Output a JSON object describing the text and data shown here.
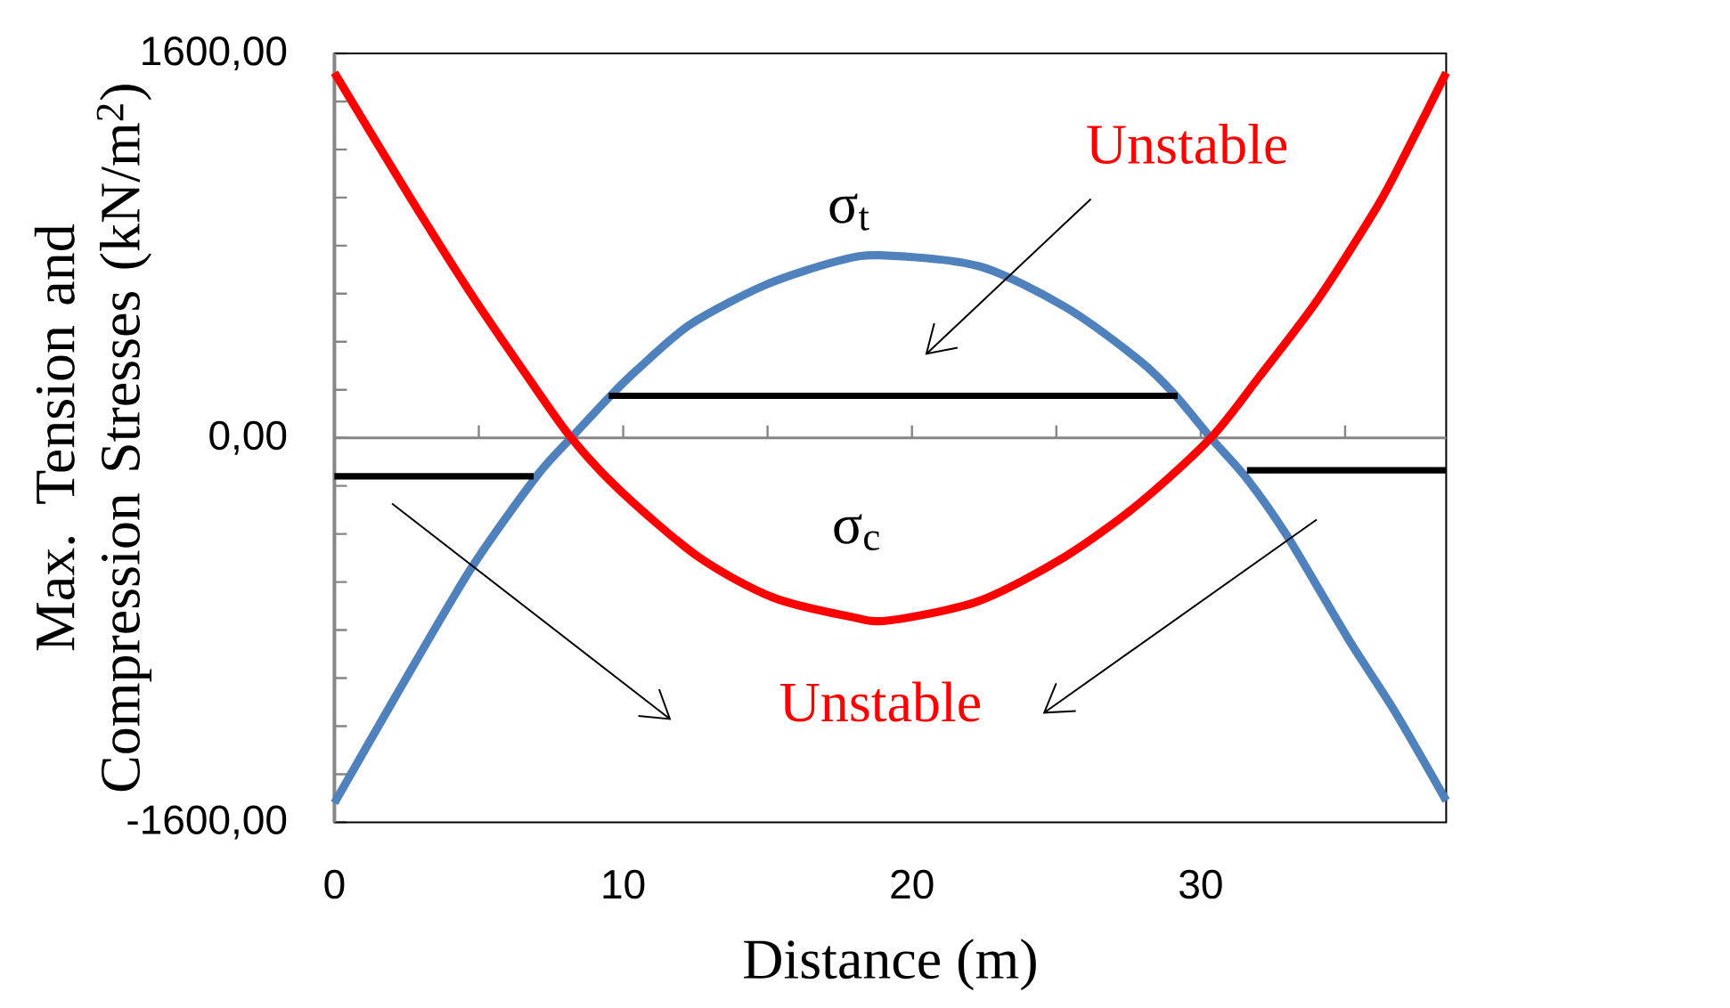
{
  "chart_data": {
    "type": "line",
    "xlabel": "Distance (m)",
    "ylabel": "Max. Tension and Compression Stresses (kN/m$^{2}$)",
    "xlim": [
      0,
      38.5
    ],
    "ylim": [
      -1600,
      1600
    ],
    "xticks": [
      0,
      {
        "value": 5,
        "label": null
      },
      10,
      {
        "value": 15,
        "label": null
      },
      20,
      {
        "value": 25,
        "label": null
      },
      30,
      {
        "value": 35,
        "label": null
      }
    ],
    "yticks": [
      {
        "value": -1600,
        "label": "-1600,00"
      },
      {
        "value": -1400,
        "label": null
      },
      {
        "value": -1200,
        "label": null
      },
      {
        "value": -1000,
        "label": null
      },
      {
        "value": -800,
        "label": null
      },
      {
        "value": -600,
        "label": null
      },
      {
        "value": -400,
        "label": null
      },
      {
        "value": -200,
        "label": null
      },
      {
        "value": 0,
        "label": "0,00"
      },
      {
        "value": 200,
        "label": null
      },
      {
        "value": 400,
        "label": null
      },
      {
        "value": 600,
        "label": null
      },
      {
        "value": 800,
        "label": null
      },
      {
        "value": 1000,
        "label": null
      },
      {
        "value": 1200,
        "label": null
      },
      {
        "value": 1400,
        "label": null
      },
      {
        "value": 1600,
        "label": "1600,00"
      }
    ],
    "marker": "none",
    "line_style": "solid",
    "series": [
      {
        "color": "#4f81bd",
        "x": [
          0,
          2.1,
          4.7,
          7,
          8.2,
          9.6,
          10.5,
          12.3,
          14.9,
          17.4,
          18.9,
          22.3,
          25.3,
          27.9,
          29.1,
          30.35,
          31.6,
          33,
          35.1,
          36.7,
          38.5
        ],
        "values": [
          -1520,
          -1080,
          -550,
          -160,
          0,
          180,
          285,
          470,
          635,
          735,
          760,
          715,
          545,
          320,
          180,
          0,
          -170,
          -410,
          -835,
          -1135,
          -1510
        ]
      },
      {
        "color": "#ff0000",
        "x": [
          0,
          2.6,
          4.7,
          6.6,
          8.2,
          9.9,
          12.6,
          15.2,
          17.9,
          19.2,
          22.3,
          25.3,
          27.9,
          30.35,
          32,
          34.05,
          36.1,
          37.1,
          38.5
        ],
        "values": [
          1520,
          1005,
          605,
          270,
          0,
          -220,
          -495,
          -665,
          -745,
          -760,
          -680,
          -495,
          -270,
          0,
          250,
          575,
          960,
          1185,
          1520
        ]
      },
      {
        "color": "#000000",
        "x": [
          0,
          6.9
        ],
        "values": [
          -160,
          -160
        ]
      },
      {
        "color": "#000000",
        "x": [
          9.5,
          29.2
        ],
        "values": [
          175,
          175
        ]
      },
      {
        "color": "#000000",
        "x": [
          31.6,
          38.5
        ],
        "values": [
          -135,
          -135
        ]
      }
    ],
    "annotations": [
      "σ$_{t}$",
      "σ$_{c}$",
      "Unstable",
      "Unstable"
    ]
  }
}
